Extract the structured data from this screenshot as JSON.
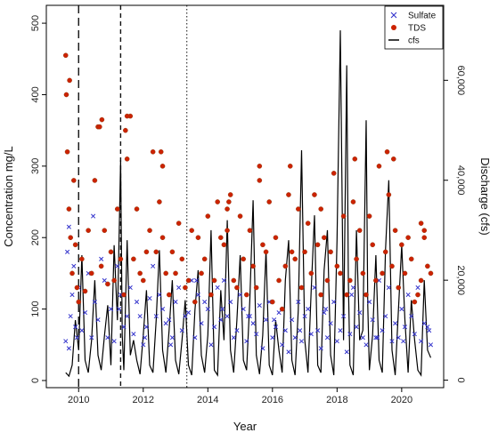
{
  "chart_data": {
    "type": "scatter",
    "title": "",
    "xlabel": "Year",
    "ylabel": "Concentration mg/L",
    "y2label": "Discharge (cfs)",
    "xlim": [
      2009.0,
      2021.3
    ],
    "ylim": [
      -10,
      525
    ],
    "y2lim": [
      -1500,
      75000
    ],
    "x_ticks": [
      "2010",
      "2012",
      "2014",
      "2016",
      "2018",
      "2020"
    ],
    "y_ticks": [
      "0",
      "100",
      "200",
      "300",
      "400",
      "500"
    ],
    "y2_ticks": [
      "0",
      "20,000",
      "40,000",
      "60,000"
    ],
    "grid": false,
    "legend": {
      "position": "top-right",
      "entries": [
        {
          "name": "Sulfate",
          "marker": "x",
          "color": "#3333cc"
        },
        {
          "name": "TDS",
          "marker": "dot",
          "color": "#cc2200"
        },
        {
          "name": "cfs",
          "marker": "line",
          "color": "#000000"
        }
      ]
    },
    "vertical_lines": [
      {
        "x": 2010.0,
        "style": "long-dash"
      },
      {
        "x": 2011.3,
        "style": "dash"
      },
      {
        "x": 2013.35,
        "style": "dotted"
      }
    ],
    "series": [
      {
        "name": "Sulfate",
        "marker": "x",
        "color": "#3333cc",
        "x": [
          2009.6,
          2009.65,
          2009.7,
          2009.75,
          2009.8,
          2009.85,
          2009.9,
          2009.95,
          2010.0,
          2010.1,
          2010.2,
          2010.3,
          2010.4,
          2010.5,
          2010.6,
          2010.7,
          2010.8,
          2010.9,
          2011.0,
          2011.1,
          2011.2,
          2011.3,
          2011.4,
          2011.5,
          2011.6,
          2011.7,
          2011.8,
          2011.9,
          2012.0,
          2012.1,
          2012.2,
          2012.3,
          2012.4,
          2012.5,
          2012.6,
          2012.7,
          2012.8,
          2012.9,
          2013.0,
          2013.1,
          2013.2,
          2013.3,
          2013.4,
          2013.5,
          2013.6,
          2013.7,
          2013.8,
          2013.9,
          2014.0,
          2014.1,
          2014.2,
          2014.3,
          2014.4,
          2014.5,
          2014.6,
          2014.7,
          2014.8,
          2014.9,
          2015.0,
          2015.1,
          2015.2,
          2015.3,
          2015.4,
          2015.5,
          2015.6,
          2015.7,
          2015.8,
          2015.9,
          2016.0,
          2016.1,
          2016.2,
          2016.3,
          2016.4,
          2016.5,
          2016.6,
          2016.7,
          2016.8,
          2016.9,
          2017.0,
          2017.1,
          2017.2,
          2017.3,
          2017.4,
          2017.5,
          2017.6,
          2017.7,
          2017.8,
          2017.9,
          2018.0,
          2018.1,
          2018.2,
          2018.3,
          2018.4,
          2018.5,
          2018.6,
          2018.7,
          2018.8,
          2018.9,
          2019.0,
          2019.1,
          2019.2,
          2019.3,
          2019.4,
          2019.5,
          2019.6,
          2019.7,
          2019.8,
          2019.9,
          2020.0,
          2020.1,
          2020.2,
          2020.3,
          2020.4,
          2020.5,
          2020.6,
          2020.7,
          2020.8,
          2020.9,
          2009.7,
          2010.45,
          2011.25,
          2012.05,
          2012.85,
          2013.65,
          2014.45,
          2015.25,
          2016.05,
          2016.85,
          2017.65,
          2018.45,
          2019.25,
          2020.05,
          2020.85
        ],
        "y": [
          55,
          180,
          215,
          90,
          120,
          160,
          75,
          60,
          130,
          70,
          95,
          150,
          60,
          110,
          85,
          170,
          140,
          60,
          100,
          55,
          160,
          120,
          75,
          90,
          130,
          65,
          110,
          90,
          50,
          75,
          115,
          160,
          90,
          120,
          100,
          80,
          85,
          60,
          110,
          130,
          70,
          90,
          95,
          140,
          60,
          120,
          80,
          110,
          100,
          50,
          75,
          130,
          85,
          140,
          90,
          110,
          60,
          70,
          120,
          100,
          55,
          90,
          80,
          65,
          105,
          45,
          85,
          110,
          60,
          75,
          95,
          50,
          70,
          40,
          85,
          60,
          110,
          55,
          90,
          100,
          65,
          130,
          70,
          45,
          95,
          60,
          80,
          110,
          55,
          70,
          90,
          40,
          65,
          130,
          75,
          95,
          60,
          50,
          110,
          85,
          60,
          140,
          70,
          90,
          130,
          55,
          80,
          60,
          100,
          75,
          120,
          90,
          65,
          130,
          55,
          80,
          75,
          50,
          45,
          230,
          100,
          60,
          50,
          140,
          100,
          90,
          85,
          70,
          100,
          120,
          60,
          55,
          70
        ]
      },
      {
        "name": "TDS",
        "marker": "dot",
        "color": "#cc2200",
        "x": [
          2009.6,
          2009.65,
          2009.7,
          2009.75,
          2009.8,
          2009.85,
          2009.9,
          2009.95,
          2010.0,
          2010.1,
          2010.2,
          2010.3,
          2010.4,
          2010.5,
          2010.6,
          2010.7,
          2010.8,
          2010.9,
          2011.0,
          2011.1,
          2011.2,
          2011.3,
          2011.4,
          2011.5,
          2011.6,
          2011.7,
          2011.8,
          2011.9,
          2012.0,
          2012.1,
          2012.2,
          2012.3,
          2012.4,
          2012.5,
          2012.6,
          2012.7,
          2012.8,
          2012.9,
          2013.0,
          2013.1,
          2013.2,
          2013.3,
          2013.4,
          2013.5,
          2013.6,
          2013.7,
          2013.8,
          2013.9,
          2014.0,
          2014.1,
          2014.2,
          2014.3,
          2014.4,
          2014.5,
          2014.6,
          2014.7,
          2014.8,
          2014.9,
          2015.0,
          2015.1,
          2015.2,
          2015.3,
          2015.4,
          2015.5,
          2015.6,
          2015.7,
          2015.8,
          2015.9,
          2016.0,
          2016.1,
          2016.2,
          2016.3,
          2016.4,
          2016.5,
          2016.6,
          2016.7,
          2016.8,
          2016.9,
          2017.0,
          2017.1,
          2017.2,
          2017.3,
          2017.4,
          2017.5,
          2017.6,
          2017.7,
          2017.8,
          2017.9,
          2018.0,
          2018.1,
          2018.2,
          2018.3,
          2018.4,
          2018.5,
          2018.6,
          2018.7,
          2018.8,
          2018.9,
          2019.0,
          2019.1,
          2019.2,
          2019.3,
          2019.4,
          2019.5,
          2019.6,
          2019.7,
          2019.8,
          2019.9,
          2020.0,
          2020.1,
          2020.2,
          2020.3,
          2020.4,
          2020.5,
          2020.6,
          2020.7,
          2020.8,
          2020.9,
          2009.62,
          2009.72,
          2010.65,
          2010.72,
          2011.45,
          2011.5,
          2012.55,
          2012.6,
          2014.6,
          2014.65,
          2015.6,
          2016.55,
          2017.5,
          2018.55,
          2019.55,
          2019.75,
          2020.6,
          2020.7
        ],
        "y": [
          455,
          320,
          240,
          200,
          150,
          280,
          190,
          130,
          110,
          170,
          125,
          210,
          150,
          280,
          355,
          160,
          210,
          135,
          180,
          140,
          240,
          170,
          120,
          310,
          370,
          170,
          240,
          150,
          140,
          180,
          210,
          320,
          180,
          250,
          200,
          150,
          120,
          180,
          150,
          220,
          170,
          130,
          140,
          210,
          110,
          200,
          150,
          170,
          230,
          120,
          140,
          250,
          200,
          190,
          210,
          260,
          140,
          130,
          230,
          170,
          120,
          210,
          160,
          130,
          300,
          190,
          180,
          250,
          110,
          200,
          140,
          100,
          160,
          260,
          180,
          170,
          240,
          130,
          180,
          220,
          150,
          260,
          190,
          120,
          200,
          140,
          180,
          290,
          160,
          150,
          230,
          120,
          140,
          250,
          170,
          210,
          150,
          120,
          230,
          190,
          140,
          300,
          150,
          180,
          260,
          160,
          210,
          130,
          190,
          150,
          200,
          170,
          110,
          120,
          140,
          200,
          160,
          150,
          400,
          420,
          355,
          365,
          350,
          370,
          320,
          300,
          240,
          250,
          280,
          300,
          240,
          310,
          320,
          310,
          220,
          210
        ]
      },
      {
        "name": "cfs",
        "marker": "line",
        "color": "#000000",
        "x": [
          2009.6,
          2009.7,
          2009.8,
          2009.9,
          2010.0,
          2010.1,
          2010.2,
          2010.3,
          2010.4,
          2010.5,
          2010.6,
          2010.7,
          2010.8,
          2010.9,
          2011.0,
          2011.1,
          2011.2,
          2011.3,
          2011.35,
          2011.4,
          2011.5,
          2011.6,
          2011.7,
          2011.8,
          2011.9,
          2012.0,
          2012.1,
          2012.2,
          2012.3,
          2012.4,
          2012.5,
          2012.6,
          2012.7,
          2012.8,
          2012.9,
          2013.0,
          2013.1,
          2013.2,
          2013.3,
          2013.4,
          2013.5,
          2013.6,
          2013.7,
          2013.8,
          2013.9,
          2014.0,
          2014.1,
          2014.2,
          2014.3,
          2014.4,
          2014.5,
          2014.6,
          2014.7,
          2014.8,
          2014.9,
          2015.0,
          2015.1,
          2015.2,
          2015.3,
          2015.4,
          2015.5,
          2015.6,
          2015.7,
          2015.8,
          2015.9,
          2016.0,
          2016.1,
          2016.2,
          2016.3,
          2016.4,
          2016.5,
          2016.6,
          2016.7,
          2016.8,
          2016.9,
          2017.0,
          2017.1,
          2017.2,
          2017.3,
          2017.4,
          2017.5,
          2017.6,
          2017.7,
          2017.8,
          2017.9,
          2018.0,
          2018.1,
          2018.15,
          2018.2,
          2018.3,
          2018.35,
          2018.4,
          2018.5,
          2018.6,
          2018.7,
          2018.8,
          2018.9,
          2018.95,
          2019.0,
          2019.1,
          2019.2,
          2019.3,
          2019.4,
          2019.5,
          2019.6,
          2019.7,
          2019.8,
          2019.9,
          2020.0,
          2020.1,
          2020.2,
          2020.3,
          2020.4,
          2020.5,
          2020.6,
          2020.7,
          2020.8,
          2020.9
        ],
        "y": [
          1500,
          800,
          3000,
          12000,
          6000,
          25000,
          4000,
          1500,
          8000,
          20000,
          5000,
          2000,
          9000,
          15000,
          3000,
          27000,
          12000,
          44000,
          9000,
          2000,
          28000,
          5000,
          8000,
          4000,
          1200,
          9000,
          18000,
          3000,
          1500,
          12000,
          26000,
          6000,
          1500,
          10000,
          20000,
          4000,
          1200,
          8000,
          16000,
          3000,
          1000,
          14000,
          22000,
          5000,
          1500,
          9000,
          30000,
          2000,
          1000,
          18000,
          8000,
          32000,
          6000,
          1500,
          12000,
          25000,
          4000,
          2000,
          16000,
          36000,
          5000,
          1200,
          9000,
          26000,
          3000,
          1000,
          12000,
          6000,
          1500,
          20000,
          28000,
          4000,
          1000,
          14000,
          46000,
          8000,
          1500,
          18000,
          33000,
          3000,
          1500,
          22000,
          30000,
          5000,
          1000,
          28000,
          70000,
          40000,
          8000,
          63000,
          20000,
          3000,
          1000,
          30000,
          8000,
          10000,
          52000,
          15000,
          2000,
          9000,
          25000,
          4000,
          1500,
          26000,
          40000,
          6000,
          1000,
          14000,
          27000,
          12000,
          1500,
          16000,
          8000,
          2000,
          1000,
          20000,
          6000,
          4500
        ]
      }
    ]
  }
}
